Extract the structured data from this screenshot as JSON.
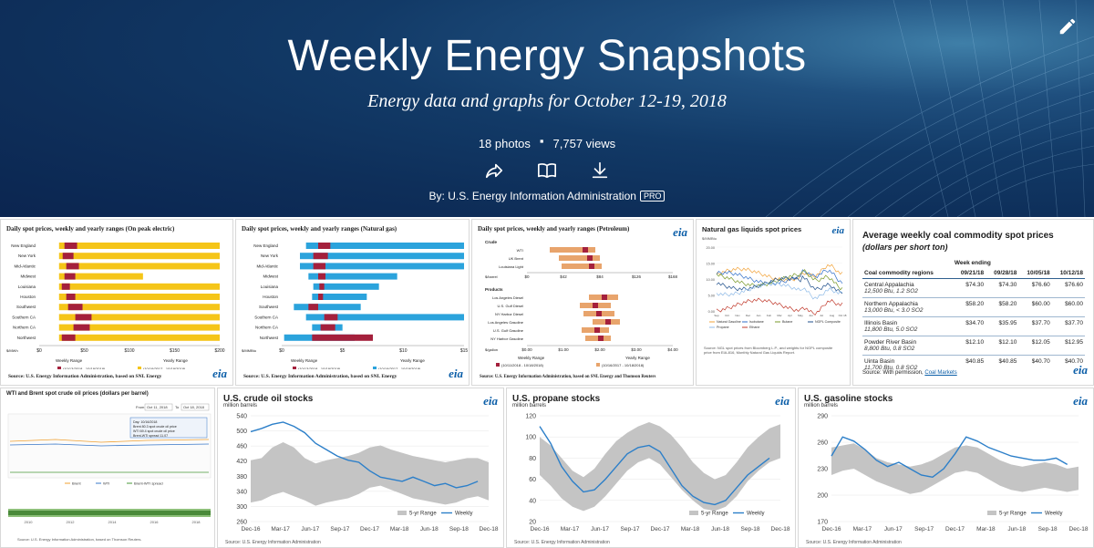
{
  "banner": {
    "title": "Weekly Energy Snapshots",
    "subtitle": "Energy data and graphs for October 12-19, 2018",
    "photos": "18 photos",
    "views": "7,757 views",
    "byline": "By: U.S. Energy Information Administration",
    "badge": "PRO",
    "icons": [
      "edit-icon",
      "share-icon",
      "book-icon",
      "download-icon"
    ]
  },
  "electric": {
    "title": "Daily spot prices, weekly and yearly ranges (On peak electric)",
    "rows": [
      "New England",
      "New York",
      "Mid-Atlantic",
      "Midwest",
      "Louisiana",
      "Houston",
      "Southwest",
      "Southern CA",
      "Northern CA",
      "Northwest"
    ],
    "yearly": [
      200,
      200,
      200,
      115,
      200,
      200,
      200,
      200,
      200,
      200
    ],
    "weekly_lo": [
      28,
      26,
      30,
      28,
      25,
      30,
      32,
      40,
      38,
      25
    ],
    "weekly_hi": [
      42,
      38,
      44,
      40,
      34,
      40,
      48,
      58,
      56,
      40
    ],
    "ticks": [
      "$0",
      "$50",
      "$100",
      "$150",
      "$200"
    ],
    "unit": "$/MWh",
    "legend_weekly": "Weekly Range",
    "legend_yearly": "Yearly Range",
    "legend_a": "(10/13/2018 - 10/19/2018)",
    "legend_b": "(10/19/2017 - 10/19/2018)",
    "source": "Source: U.S. Energy Information Administration, based on SNL Energy"
  },
  "gas": {
    "title": "Daily spot prices, weekly and yearly ranges (Natural gas)",
    "rows": [
      "New England",
      "New York",
      "Mid-Atlantic",
      "Midwest",
      "Louisiana",
      "Houston",
      "Southwest",
      "Southern CA",
      "Northern CA",
      "Northwest"
    ],
    "yearly_lo": [
      2.0,
      1.5,
      1.5,
      2.2,
      2.6,
      2.5,
      1.0,
      2.0,
      2.5,
      0.2
    ],
    "yearly_hi": [
      15,
      15,
      15,
      9.5,
      8.0,
      7.0,
      6.5,
      15,
      5.0,
      6.0
    ],
    "weekly_lo": [
      3.0,
      2.6,
      2.6,
      3.0,
      3.1,
      3.0,
      2.2,
      3.5,
      3.2,
      2.5
    ],
    "weekly_hi": [
      4.0,
      3.8,
      3.6,
      3.6,
      3.5,
      3.4,
      3.0,
      4.6,
      4.4,
      7.5
    ],
    "ticks": [
      "$0",
      "$5",
      "$10",
      "$15"
    ],
    "unit": "$/MMBtu",
    "legend_weekly": "Weekly Range",
    "legend_yearly": "Yearly Range",
    "legend_a": "(10/13/2018 - 10/19/2018)",
    "legend_b": "(10/19/2017 - 10/19/2018)",
    "source": "Source: U.S. Energy Information Administration, based on SNL Energy"
  },
  "petroleum": {
    "title": "Daily spot prices, weekly and yearly ranges (Petroleum)",
    "crude_label": "Crude",
    "crude_rows": [
      "WTI",
      "UK Brent",
      "Louisiana Light"
    ],
    "crude_unit": "$/barrel",
    "crude_ticks": [
      "$0",
      "$42",
      "$84",
      "$126",
      "$168"
    ],
    "products_label": "Products",
    "product_rows": [
      "Los Angeles Diesel",
      "U.S. Gulf Diesel",
      "NY Harbor Diesel",
      "Los Angeles Gasoline",
      "U.S. Gulf Gasoline",
      "NY Harbor Gasoline"
    ],
    "product_unit": "$/gallon",
    "product_ticks": [
      "$0.00",
      "$1.00",
      "$2.00",
      "$3.00",
      "$4.00"
    ],
    "legend_weekly": "Weekly Range",
    "legend_yearly": "Yearly Range",
    "legend_a": "(10/11/2018 - 10/18/2018)",
    "legend_b": "(10/16/2017 - 10/18/2018)",
    "source": "Source: U.S. Energy Information Administration, based on SNL Energy and Thomson Reuters"
  },
  "ngl": {
    "title": "Natural gas liquids spot prices",
    "unit": "$/MMBtu",
    "y_ticks": [
      "20.00",
      "15.00",
      "10.00",
      "5.00",
      "0.00"
    ],
    "x_ticks": [
      "Sep",
      "Oct",
      "Nov",
      "Dec",
      "Jan",
      "Feb",
      "Mar",
      "Apr",
      "May",
      "Jun",
      "Jul",
      "Aug",
      "Oct 18"
    ],
    "legend": [
      "Natural Gasoline",
      "Isobutane",
      "Butane",
      "NGPL Composite",
      "Propane",
      "Ethane"
    ],
    "colors": [
      "#f2a33a",
      "#2f6ec9",
      "#7a9a2a",
      "#1f4f8b",
      "#8fbbe8",
      "#c0392b"
    ],
    "source": "Source: NGL spot prices from Bloomberg L.P., and weights for NGPL composite price from EIA-816, Monthly Natural Gas Liquids Report."
  },
  "coal": {
    "title": "Average weekly coal commodity spot prices",
    "subtitle": "(dollars per short ton)",
    "week_ending": "Week ending",
    "col_region": "Coal commodity regions",
    "dates": [
      "09/21/18",
      "09/28/18",
      "10/05/18",
      "10/12/18"
    ],
    "rows": [
      {
        "name": "Central Appalachia",
        "spec": "12,500 Btu, 1.2 SO2",
        "vals": [
          "$74.30",
          "$74.30",
          "$76.60",
          "$76.60"
        ]
      },
      {
        "name": "Northern Appalachia",
        "spec": "13,000 Btu, < 3.0 SO2",
        "vals": [
          "$58.20",
          "$58.20",
          "$60.00",
          "$60.00"
        ]
      },
      {
        "name": "Illinois Basin",
        "spec": "11,800 Btu, 5.0 SO2",
        "vals": [
          "$34.70",
          "$35.95",
          "$37.70",
          "$37.70"
        ]
      },
      {
        "name": "Powder River Basin",
        "spec": "8,800 Btu, 0.8 SO2",
        "vals": [
          "$12.10",
          "$12.10",
          "$12.05",
          "$12.95"
        ]
      },
      {
        "name": "Uinta Basin",
        "spec": "11,700 Btu, 0.8 SO2",
        "vals": [
          "$40.85",
          "$40.85",
          "$40.70",
          "$40.70"
        ]
      }
    ],
    "source": "Source: With permission,",
    "source_link": "Coal Markets"
  },
  "wti": {
    "title": "WTI and Brent spot crude oil prices (dollars per barrel)",
    "from_label": "From",
    "from_val": "Oct 11, 2018",
    "to_label": "To",
    "to_val": "Oct 18, 2018",
    "tooltip": [
      "Day: 10/16/2018",
      "Brent 80.3 spot crude oil price",
      "WTI 69.4 spot crude oil price",
      "Brent-WTI spread 11.07"
    ],
    "legend": [
      "Brent",
      "WTI",
      "Brent-WTI spread"
    ],
    "year_ticks": [
      "2010",
      "2012",
      "2014",
      "2016",
      "2018"
    ],
    "source": "Source: U.S. Energy Information Administration, based on Thomson Reuters."
  },
  "crude_stocks": {
    "title": "U.S. crude oil stocks",
    "unit": "million barrels",
    "y_ticks": [
      "540",
      "500",
      "460",
      "420",
      "380",
      "340",
      "300",
      "260"
    ],
    "x_ticks": [
      "Dec-16",
      "Mar-17",
      "Jun-17",
      "Sep-17",
      "Dec-17",
      "Mar-18",
      "Jun-18",
      "Sep-18",
      "Dec-18"
    ],
    "legend_range": "5-yr Range",
    "legend_weekly": "Weekly",
    "source": "Source: U.S. Energy Information Administration"
  },
  "propane_stocks": {
    "title": "U.S. propane stocks",
    "unit": "million barrels",
    "y_ticks": [
      "120",
      "100",
      "80",
      "60",
      "40",
      "20"
    ],
    "x_ticks": [
      "Dec-16",
      "Mar-17",
      "Jun-17",
      "Sep-17",
      "Dec-17",
      "Mar-18",
      "Jun-18",
      "Sep-18",
      "Dec-18"
    ],
    "legend_range": "5-yr Range",
    "legend_weekly": "Weekly",
    "source": "Source: U.S. Energy Information Administration"
  },
  "gasoline_stocks": {
    "title": "U.S. gasoline stocks",
    "unit": "million barrels",
    "y_ticks": [
      "290",
      "260",
      "230",
      "200",
      "170"
    ],
    "x_ticks": [
      "Dec-16",
      "Mar-17",
      "Jun-17",
      "Sep-17",
      "Dec-17",
      "Mar-18",
      "Jun-18",
      "Sep-18",
      "Dec-18"
    ],
    "legend_range": "5-yr Range",
    "legend_weekly": "Weekly",
    "source": "Source: U.S. Energy Information Administration"
  },
  "eia_logo": "eia"
}
